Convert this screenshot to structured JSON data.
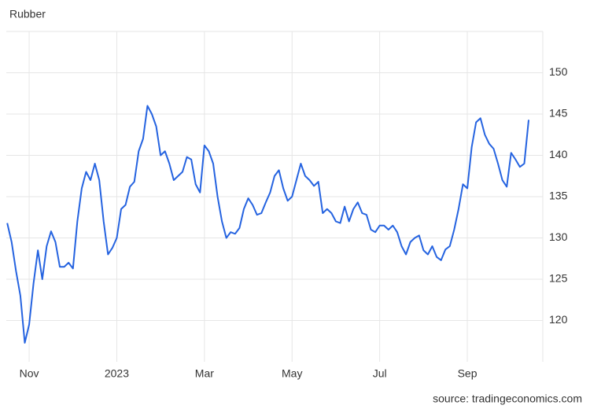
{
  "chart_data": {
    "type": "line",
    "title": "Rubber",
    "source": "source: tradingeconomics.com",
    "categories": [
      null,
      null,
      null,
      null,
      null,
      "Nov",
      null,
      null,
      null,
      null,
      null,
      null,
      null,
      null,
      null,
      null,
      null,
      null,
      null,
      null,
      null,
      null,
      null,
      null,
      null,
      "2023",
      null,
      null,
      null,
      null,
      null,
      null,
      null,
      null,
      null,
      null,
      null,
      null,
      null,
      null,
      null,
      null,
      null,
      null,
      null,
      "Mar",
      null,
      null,
      null,
      null,
      null,
      null,
      null,
      null,
      null,
      null,
      null,
      null,
      null,
      null,
      null,
      null,
      null,
      null,
      null,
      "May",
      null,
      null,
      null,
      null,
      null,
      null,
      null,
      null,
      null,
      null,
      null,
      null,
      null,
      null,
      null,
      null,
      null,
      null,
      null,
      "Jul",
      null,
      null,
      null,
      null,
      null,
      null,
      null,
      null,
      null,
      null,
      null,
      null,
      null,
      null,
      null,
      null,
      null,
      null,
      null,
      "Sep",
      null,
      null,
      null,
      null,
      null,
      null,
      null,
      null,
      null,
      null,
      null,
      null,
      null,
      null
    ],
    "values": [
      131.8,
      129.5,
      126,
      123,
      117.3,
      119.5,
      124.5,
      128.5,
      125,
      129,
      130.8,
      129.5,
      126.5,
      126.5,
      127,
      126.3,
      132,
      136,
      138,
      137,
      139,
      137,
      132,
      128,
      128.8,
      130,
      133.5,
      134,
      136.2,
      136.8,
      140.5,
      142,
      146,
      145,
      143.5,
      140,
      140.5,
      139,
      137,
      137.5,
      138,
      139.8,
      139.5,
      136.5,
      135.5,
      141.2,
      140.5,
      139,
      135,
      132,
      130,
      130.7,
      130.5,
      131.2,
      133.5,
      134.8,
      134,
      132.8,
      133,
      134.3,
      135.5,
      137.5,
      138.2,
      136,
      134.5,
      135,
      137,
      139,
      137.5,
      137,
      136.3,
      136.8,
      133,
      133.5,
      133,
      132,
      131.8,
      133.8,
      132,
      133.5,
      134.3,
      133,
      132.8,
      131,
      130.7,
      131.5,
      131.5,
      131,
      131.5,
      130.7,
      129,
      128,
      129.5,
      130,
      130.3,
      128.5,
      128,
      129,
      127.7,
      127.3,
      128.6,
      129,
      131,
      133.5,
      136.5,
      136,
      141,
      144,
      144.5,
      142.5,
      141.4,
      140.8,
      139,
      137,
      136.2,
      140.3,
      139.5,
      138.6,
      139,
      144.3
    ],
    "color": "#2563e0",
    "ylim": [
      115,
      155
    ],
    "yticks": [
      120,
      125,
      130,
      135,
      140,
      145,
      150
    ],
    "grid": true
  }
}
